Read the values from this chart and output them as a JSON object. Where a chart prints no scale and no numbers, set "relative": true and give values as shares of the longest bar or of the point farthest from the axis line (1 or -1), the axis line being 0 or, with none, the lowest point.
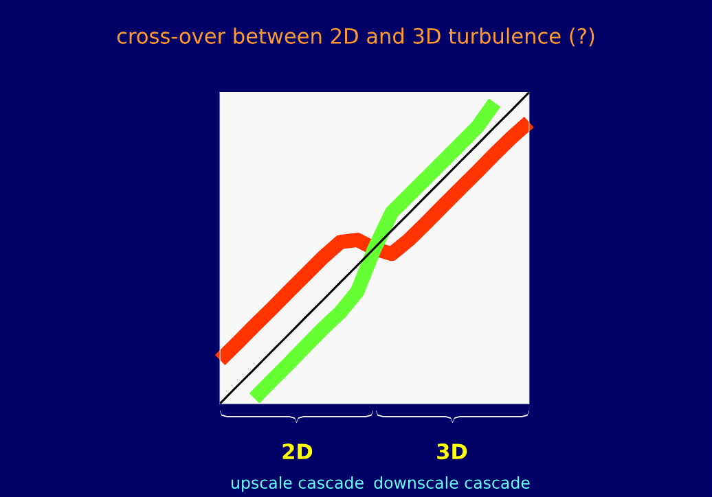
{
  "chart_data": {
    "type": "line",
    "title": "cross-over between 2D and 3D turbulence (?)",
    "relative": true,
    "categories": [
      null,
      null,
      null,
      null,
      null,
      null,
      null,
      null,
      null,
      null,
      null,
      null,
      null,
      null,
      null,
      null,
      null,
      null,
      null
    ],
    "series": [
      {
        "color": "#ff3300",
        "values": [
          0.14,
          0.194,
          0.25,
          0.304,
          0.36,
          0.415,
          0.47,
          0.519,
          0.526,
          0.498,
          0.481,
          0.526,
          0.58,
          0.636,
          0.691,
          0.746,
          0.802,
          0.856,
          0.905
        ]
      },
      {
        "color": "#66ff33",
        "values": [
          null,
          null,
          0.017,
          0.073,
          0.128,
          0.185,
          0.241,
          0.293,
          0.36,
          0.498,
          0.614,
          0.669,
          0.724,
          0.779,
          0.834,
          0.89,
          0.967,
          null,
          null
        ]
      },
      {
        "color": "#000000",
        "values": [
          0,
          0.056,
          0.111,
          0.167,
          0.222,
          0.278,
          0.333,
          0.389,
          0.444,
          0.5,
          0.556,
          0.611,
          0.667,
          0.722,
          0.778,
          0.833,
          0.889,
          0.944,
          1
        ]
      }
    ],
    "annotations": [
      "2D",
      "upscale cascade",
      "3D",
      "downscale cascade"
    ],
    "grid": false,
    "legend": false
  }
}
